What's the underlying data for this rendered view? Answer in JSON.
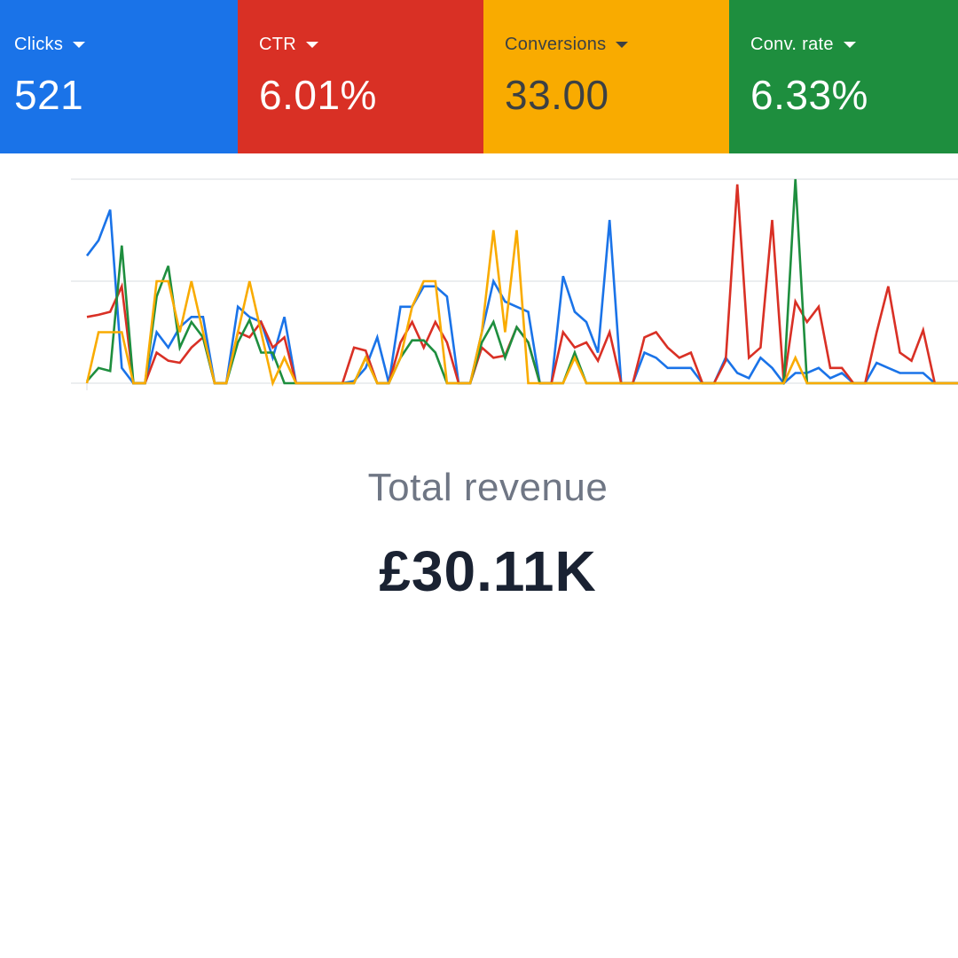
{
  "metrics": [
    {
      "label": "Clicks",
      "value": "521",
      "color": "#1a73e8",
      "text_color": "#ffffff",
      "icon": "caret-down-icon"
    },
    {
      "label": "CTR",
      "value": "6.01%",
      "color": "#d93025",
      "text_color": "#ffffff",
      "icon": "caret-down-icon"
    },
    {
      "label": "Conversions",
      "value": "33.00",
      "color": "#f9ab00",
      "text_color": "#3c4043",
      "icon": "caret-down-icon"
    },
    {
      "label": "Conv. rate",
      "value": "6.33%",
      "color": "#1e8e3e",
      "text_color": "#ffffff",
      "icon": "caret-down-icon"
    }
  ],
  "chart_data": {
    "type": "line",
    "grid": true,
    "ylim": [
      0,
      2
    ],
    "x": [
      0,
      1,
      2,
      3,
      4,
      5,
      6,
      7,
      8,
      9,
      10,
      11,
      12,
      13,
      14,
      15,
      16,
      17,
      18,
      19,
      20,
      21,
      22,
      23,
      24,
      25,
      26,
      27,
      28,
      29,
      30,
      31,
      32,
      33,
      34,
      35,
      36,
      37,
      38,
      39,
      40,
      41,
      42,
      43,
      44,
      45,
      46,
      47,
      48,
      49,
      50,
      51,
      52,
      53,
      54,
      55,
      56,
      57,
      58,
      59,
      60,
      61,
      62,
      63,
      64,
      65,
      66,
      67,
      68,
      69,
      70,
      71,
      72,
      73,
      74,
      75
    ],
    "series": [
      {
        "color": "#1a73e8",
        "values": [
          1.25,
          1.4,
          1.7,
          0.15,
          0,
          0,
          0.5,
          0.35,
          0.55,
          0.65,
          0.65,
          0,
          0,
          0.75,
          0.65,
          0.6,
          0.25,
          0.65,
          0,
          0,
          0,
          0,
          0,
          0.02,
          0.15,
          0.45,
          0,
          0.75,
          0.75,
          0.95,
          0.95,
          0.85,
          0,
          0,
          0.5,
          1.0,
          0.8,
          0.75,
          0.7,
          0,
          0,
          1.05,
          0.7,
          0.6,
          0.3,
          1.6,
          0,
          0,
          0.3,
          0.25,
          0.15,
          0.15,
          0.15,
          0,
          0,
          0.25,
          0.1,
          0.05,
          0.25,
          0.15,
          0,
          0.1,
          0.1,
          0.15,
          0.05,
          0.1,
          0,
          0,
          0.2,
          0.15,
          0.1,
          0.1,
          0.1,
          0,
          0,
          0
        ]
      },
      {
        "color": "#d93025",
        "values": [
          0.65,
          0.67,
          0.7,
          0.95,
          0,
          0,
          0.3,
          0.22,
          0.2,
          0.35,
          0.45,
          0,
          0,
          0.5,
          0.45,
          0.6,
          0.35,
          0.45,
          0,
          0,
          0,
          0,
          0,
          0.35,
          0.32,
          0,
          0,
          0.4,
          0.6,
          0.35,
          0.6,
          0.4,
          0,
          0,
          0.35,
          0.25,
          0.27,
          0.55,
          0.4,
          0,
          0,
          0.5,
          0.35,
          0.4,
          0.22,
          0.5,
          0,
          0,
          0.45,
          0.5,
          0.35,
          0.25,
          0.3,
          0,
          0,
          0.22,
          1.95,
          0.25,
          0.35,
          1.6,
          0,
          0.8,
          0.6,
          0.75,
          0.15,
          0.15,
          0,
          0,
          0.5,
          0.95,
          0.3,
          0.22,
          0.52,
          0,
          0,
          0
        ]
      },
      {
        "color": "#1e8e3e",
        "values": [
          0.02,
          0.15,
          0.12,
          1.35,
          0,
          0,
          0.85,
          1.15,
          0.35,
          0.6,
          0.45,
          0,
          0,
          0.4,
          0.62,
          0.3,
          0.3,
          0,
          0,
          0,
          0,
          0,
          0,
          0,
          0.25,
          0,
          0,
          0.25,
          0.42,
          0.42,
          0.3,
          0,
          0,
          0,
          0.4,
          0.6,
          0.25,
          0.55,
          0.4,
          0,
          0,
          0,
          0.3,
          0,
          0,
          0,
          0,
          0,
          0,
          0,
          0,
          0,
          0,
          0,
          0,
          0,
          0,
          0,
          0,
          0,
          0,
          2.0,
          0,
          0,
          0,
          0,
          0,
          0,
          0,
          0,
          0,
          0,
          0,
          0,
          0,
          0
        ]
      },
      {
        "color": "#f9ab00",
        "values": [
          0,
          0.5,
          0.5,
          0.5,
          0,
          0,
          1.0,
          1.0,
          0.5,
          1.0,
          0.5,
          0,
          0,
          0.5,
          1.0,
          0.5,
          0,
          0.25,
          0,
          0,
          0,
          0,
          0,
          0,
          0.25,
          0,
          0,
          0.25,
          0.75,
          1.0,
          1.0,
          0,
          0,
          0,
          0.5,
          1.5,
          0.5,
          1.5,
          0,
          0,
          0,
          0,
          0.25,
          0,
          0,
          0,
          0,
          0,
          0,
          0,
          0,
          0,
          0,
          0,
          0,
          0,
          0,
          0,
          0,
          0,
          0,
          0.25,
          0,
          0,
          0,
          0,
          0,
          0,
          0,
          0,
          0,
          0,
          0,
          0,
          0,
          0
        ]
      }
    ]
  },
  "revenue": {
    "label": "Total revenue",
    "value": "£30.11K"
  }
}
